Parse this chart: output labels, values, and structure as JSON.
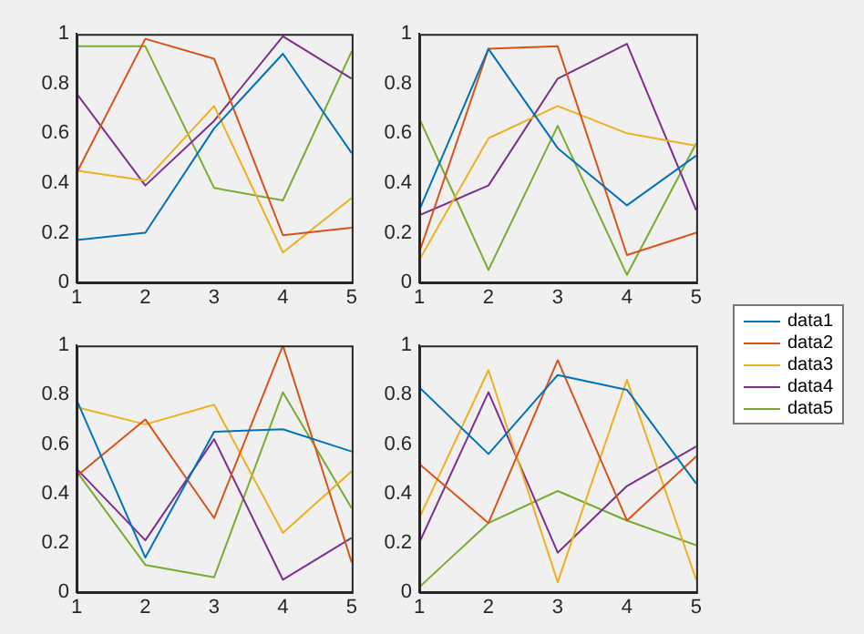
{
  "chart_data": [
    {
      "type": "line",
      "x": [
        1,
        2,
        3,
        4,
        5
      ],
      "xlim": [
        1,
        5
      ],
      "xticks": [
        1,
        2,
        3,
        4,
        5
      ],
      "ylim": [
        0,
        1
      ],
      "yticks": [
        0,
        0.2,
        0.4,
        0.6,
        0.8,
        1
      ],
      "legend": "right",
      "series": [
        {
          "name": "data1",
          "color": "#0072bd",
          "values": [
            0.17,
            0.2,
            0.62,
            0.92,
            0.52
          ]
        },
        {
          "name": "data2",
          "color": "#d95319",
          "values": [
            0.44,
            0.98,
            0.9,
            0.19,
            0.22
          ]
        },
        {
          "name": "data3",
          "color": "#edb120",
          "values": [
            0.45,
            0.41,
            0.71,
            0.12,
            0.34
          ]
        },
        {
          "name": "data4",
          "color": "#7e2f8e",
          "values": [
            0.76,
            0.39,
            0.65,
            0.99,
            0.82
          ]
        },
        {
          "name": "data5",
          "color": "#77ac30",
          "values": [
            0.95,
            0.95,
            0.38,
            0.33,
            0.93
          ]
        }
      ]
    },
    {
      "type": "line",
      "x": [
        1,
        2,
        3,
        4,
        5
      ],
      "xlim": [
        1,
        5
      ],
      "xticks": [
        1,
        2,
        3,
        4,
        5
      ],
      "ylim": [
        0,
        1
      ],
      "yticks": [
        0,
        0.2,
        0.4,
        0.6,
        0.8,
        1
      ],
      "series": [
        {
          "color": "#0072bd",
          "values": [
            0.29,
            0.94,
            0.54,
            0.31,
            0.51
          ]
        },
        {
          "color": "#d95319",
          "values": [
            0.12,
            0.94,
            0.95,
            0.11,
            0.2
          ]
        },
        {
          "color": "#edb120",
          "values": [
            0.09,
            0.58,
            0.71,
            0.6,
            0.55
          ]
        },
        {
          "color": "#7e2f8e",
          "values": [
            0.27,
            0.39,
            0.82,
            0.96,
            0.29
          ]
        },
        {
          "color": "#77ac30",
          "values": [
            0.66,
            0.05,
            0.63,
            0.03,
            0.56
          ]
        }
      ]
    },
    {
      "type": "line",
      "x": [
        1,
        2,
        3,
        4,
        5
      ],
      "xlim": [
        1,
        5
      ],
      "xticks": [
        1,
        2,
        3,
        4,
        5
      ],
      "ylim": [
        0,
        1
      ],
      "yticks": [
        0,
        0.2,
        0.4,
        0.6,
        0.8,
        1
      ],
      "series": [
        {
          "color": "#0072bd",
          "values": [
            0.78,
            0.14,
            0.65,
            0.66,
            0.57
          ]
        },
        {
          "color": "#d95319",
          "values": [
            0.47,
            0.7,
            0.3,
            1.0,
            0.12
          ]
        },
        {
          "color": "#edb120",
          "values": [
            0.75,
            0.68,
            0.76,
            0.24,
            0.49
          ]
        },
        {
          "color": "#7e2f8e",
          "values": [
            0.5,
            0.21,
            0.62,
            0.05,
            0.22
          ]
        },
        {
          "color": "#77ac30",
          "values": [
            0.49,
            0.11,
            0.06,
            0.81,
            0.34
          ]
        }
      ]
    },
    {
      "type": "line",
      "x": [
        1,
        2,
        3,
        4,
        5
      ],
      "xlim": [
        1,
        5
      ],
      "xticks": [
        1,
        2,
        3,
        4,
        5
      ],
      "ylim": [
        0,
        1
      ],
      "yticks": [
        0,
        0.2,
        0.4,
        0.6,
        0.8,
        1
      ],
      "series": [
        {
          "color": "#0072bd",
          "values": [
            0.83,
            0.56,
            0.88,
            0.82,
            0.44
          ]
        },
        {
          "color": "#d95319",
          "values": [
            0.52,
            0.28,
            0.94,
            0.29,
            0.55
          ]
        },
        {
          "color": "#edb120",
          "values": [
            0.3,
            0.9,
            0.04,
            0.86,
            0.05
          ]
        },
        {
          "color": "#7e2f8e",
          "values": [
            0.2,
            0.81,
            0.16,
            0.43,
            0.59
          ]
        },
        {
          "color": "#77ac30",
          "values": [
            0.02,
            0.28,
            0.41,
            0.29,
            0.19
          ]
        }
      ]
    }
  ]
}
